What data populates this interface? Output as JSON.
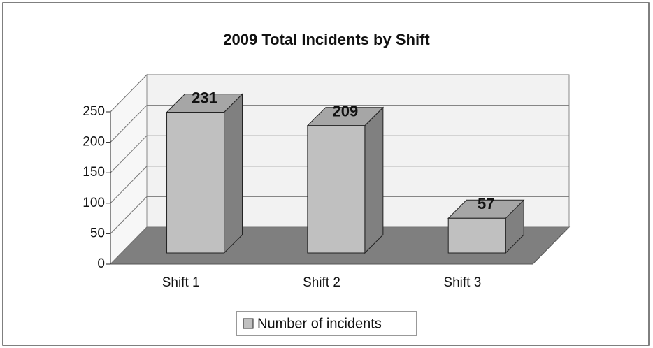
{
  "chart_data": {
    "type": "bar3d",
    "title": "2009 Total Incidents by Shift",
    "categories": [
      "Shift 1",
      "Shift 2",
      "Shift 3"
    ],
    "series": [
      {
        "name": "Number of incidents",
        "color": "#c0c0c0",
        "values": [
          231,
          209,
          57
        ]
      }
    ],
    "ylim": [
      0,
      250
    ],
    "yticks": [
      0,
      50,
      100,
      150,
      200,
      250
    ],
    "grid": true,
    "legend": "bottom"
  }
}
